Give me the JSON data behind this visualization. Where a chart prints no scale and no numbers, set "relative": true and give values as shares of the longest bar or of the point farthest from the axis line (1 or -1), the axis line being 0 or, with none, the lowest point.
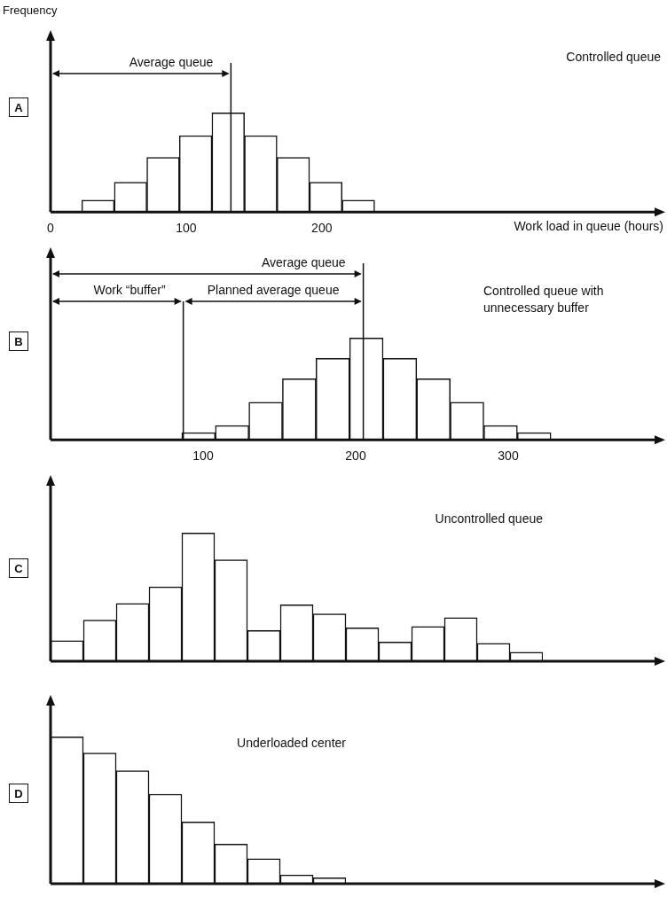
{
  "chart_data": [
    {
      "type": "bar",
      "title": "Controlled queue",
      "subtitle": "A",
      "ylabel": "Frequency",
      "xlabel": "Work load in queue (hours)",
      "relative": true,
      "x": [
        35,
        59,
        83,
        107,
        131,
        155,
        179,
        203,
        227
      ],
      "values": [
        0.12,
        0.3,
        0.55,
        0.77,
        1,
        0.77,
        0.55,
        0.3,
        0.12
      ],
      "xlim": [
        0,
        450
      ],
      "xticks": [
        0,
        100,
        200
      ],
      "tick_labels": "x",
      "color": "#ffffff",
      "ref_lines": [
        {
          "axis": "x",
          "value": 133,
          "label": "Average queue"
        }
      ]
    },
    {
      "type": "bar",
      "title": "Controlled queue with unnecessary buffer",
      "subtitle": "B",
      "relative": true,
      "color": "#ffffff",
      "x": [
        97,
        119,
        141,
        163,
        185,
        207,
        229,
        251,
        273,
        295,
        317
      ],
      "values": [
        0.07,
        0.14,
        0.37,
        0.6,
        0.8,
        1,
        0.8,
        0.6,
        0.37,
        0.14,
        0.07
      ],
      "xlim": [
        0,
        400
      ],
      "xticks": [
        100,
        200,
        300
      ],
      "tick_labels": "x",
      "ref_lines": [
        {
          "axis": "x",
          "value": 205,
          "label": "Average queue"
        },
        {
          "axis": "x",
          "value": 87,
          "label": "Work “buffer”"
        }
      ],
      "annotations": [
        "Planned average queue"
      ]
    },
    {
      "type": "bar",
      "title": "Uncontrolled queue",
      "subtitle": "C",
      "relative": true,
      "color": "#ffffff",
      "tick_labels": false,
      "categories": [
        null,
        null,
        null,
        null,
        null,
        null,
        null,
        null,
        null,
        null,
        null,
        null,
        null,
        null,
        null
      ],
      "values": [
        0.16,
        0.32,
        0.45,
        0.58,
        1,
        0.79,
        0.24,
        0.44,
        0.37,
        0.26,
        0.15,
        0.27,
        0.34,
        0.14,
        0.07
      ]
    },
    {
      "type": "bar",
      "title": "Underloaded center",
      "subtitle": "D",
      "relative": true,
      "color": "#ffffff",
      "tick_labels": false,
      "categories": [
        null,
        null,
        null,
        null,
        null,
        null,
        null,
        null,
        null
      ],
      "values": [
        1,
        0.89,
        0.77,
        0.61,
        0.42,
        0.27,
        0.17,
        0.06,
        0.04
      ]
    }
  ]
}
